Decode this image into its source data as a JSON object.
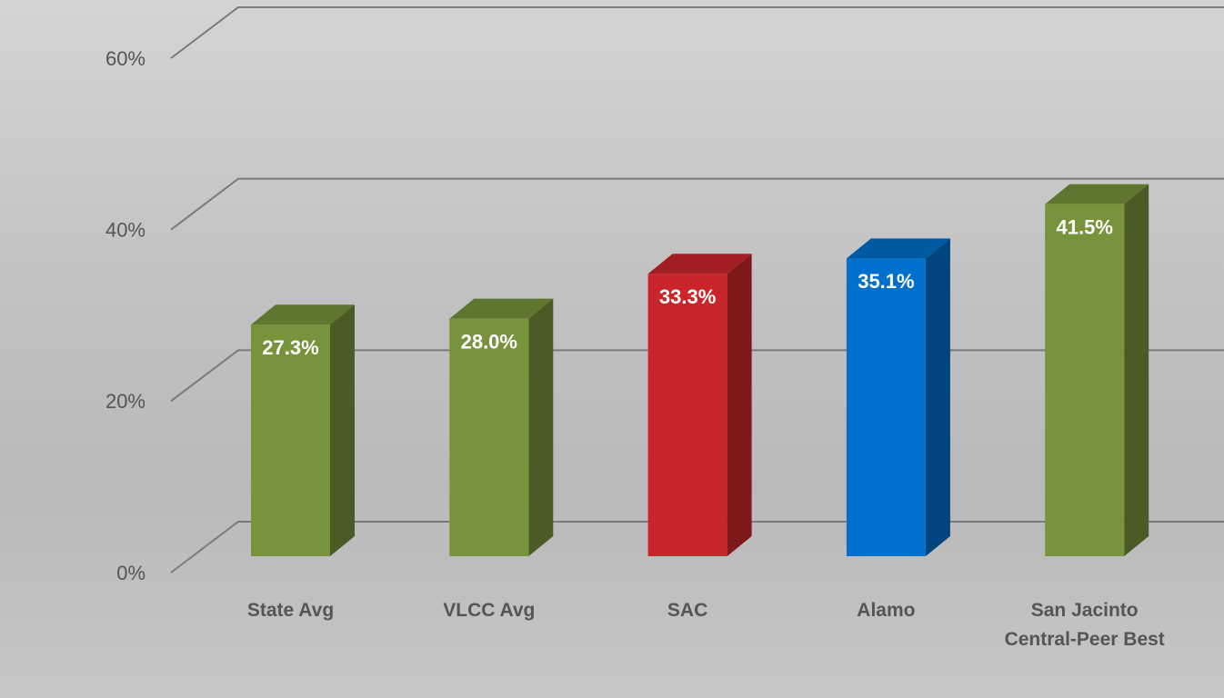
{
  "chart_data": {
    "type": "bar3d",
    "categories": [
      "State Avg",
      "VLCC Avg",
      "SAC",
      "Alamo",
      "San Jacinto Central-Peer Best"
    ],
    "values": [
      27.3,
      28.0,
      33.3,
      35.1,
      41.5
    ],
    "value_labels": [
      "27.3%",
      "28.0%",
      "33.3%",
      "35.1%",
      "41.5%"
    ],
    "colors": [
      "#77933c",
      "#77933c",
      "#c9262c",
      "#0070cc",
      "#77933c"
    ],
    "ylim": [
      0,
      60
    ],
    "yticks": [
      {
        "value": 0,
        "label": "0%"
      },
      {
        "value": 20,
        "label": "20%"
      },
      {
        "value": 40,
        "label": "40%"
      },
      {
        "value": 60,
        "label": "60%"
      }
    ],
    "grid": true
  }
}
